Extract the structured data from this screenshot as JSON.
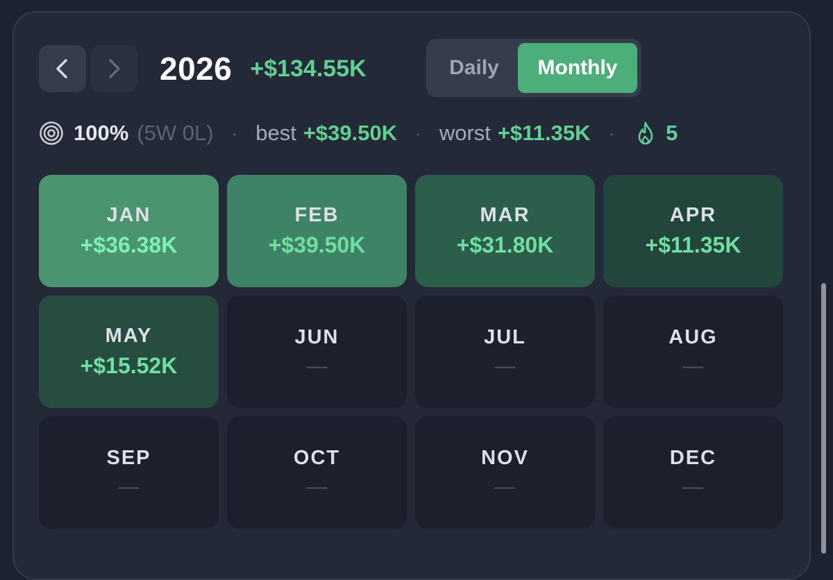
{
  "header": {
    "prev_icon": "chevron-left-icon",
    "next_icon": "chevron-right-icon",
    "year": "2026",
    "total": "+$134.55K"
  },
  "view_toggle": {
    "options": [
      "Daily",
      "Monthly"
    ],
    "selected": "Monthly"
  },
  "stats": {
    "win_rate": "100%",
    "record": "(5W 0L)",
    "best_label": "best",
    "best_value": "+$39.50K",
    "worst_label": "worst",
    "worst_value": "+$11.35K",
    "streak": "5",
    "separator": "·"
  },
  "months": [
    {
      "name": "JAN",
      "value": "+$36.38K"
    },
    {
      "name": "FEB",
      "value": "+$39.50K"
    },
    {
      "name": "MAR",
      "value": "+$31.80K"
    },
    {
      "name": "APR",
      "value": "+$11.35K"
    },
    {
      "name": "MAY",
      "value": "+$15.52K"
    },
    {
      "name": "JUN",
      "value": "—"
    },
    {
      "name": "JUL",
      "value": "—"
    },
    {
      "name": "AUG",
      "value": "—"
    },
    {
      "name": "SEP",
      "value": "—"
    },
    {
      "name": "OCT",
      "value": "—"
    },
    {
      "name": "NOV",
      "value": "—"
    },
    {
      "name": "DEC",
      "value": "—"
    }
  ],
  "colors": {
    "positive": "#5fd193",
    "accent": "#4caf7a",
    "background": "#1d2230"
  }
}
